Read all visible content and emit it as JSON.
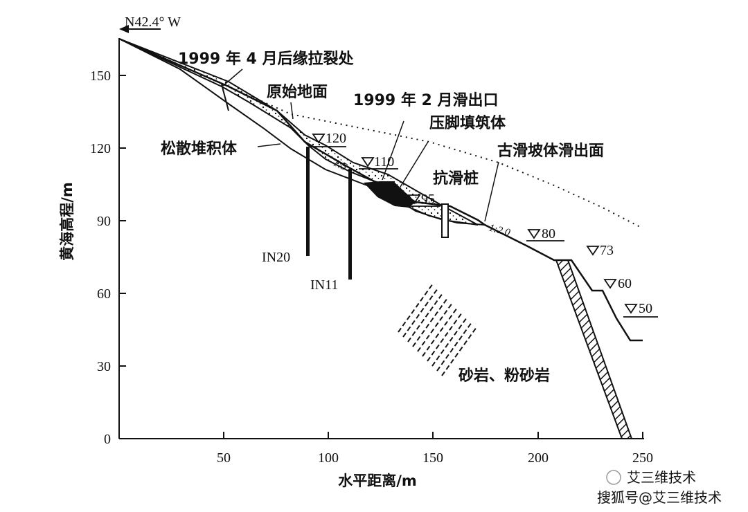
{
  "direction": "N42.4° W",
  "x_axis": {
    "title": "水平距离/m",
    "range": [
      0,
      250
    ],
    "ticks": [
      "50",
      "100",
      "150",
      "200",
      "250"
    ]
  },
  "y_axis": {
    "title": "黄海高程/m",
    "range": [
      0,
      165
    ],
    "ticks": [
      "0",
      "30",
      "60",
      "90",
      "120",
      "150"
    ]
  },
  "labels": {
    "crack": "1999 年 4 月后缘拉裂处",
    "original_ground": "原始地面",
    "outlet_1999": "1999 年 2 月滑出口",
    "toe_fill": "压脚填筑体",
    "loose_deposit": "松散堆积体",
    "ancient_slip": "古滑坡体滑出面",
    "anti_slide_pile": "抗滑桩",
    "rock": "砂岩、粉砂岩"
  },
  "elevation_marks": [
    "120",
    "110",
    "95",
    "80",
    "73",
    "60",
    "50"
  ],
  "slope_ratios": [
    "1:5",
    "1:2.0"
  ],
  "boreholes": [
    "IN20",
    "IN11"
  ],
  "watermark": {
    "channel": "艾三维技术",
    "source": "搜狐号@艾三维技术"
  }
}
